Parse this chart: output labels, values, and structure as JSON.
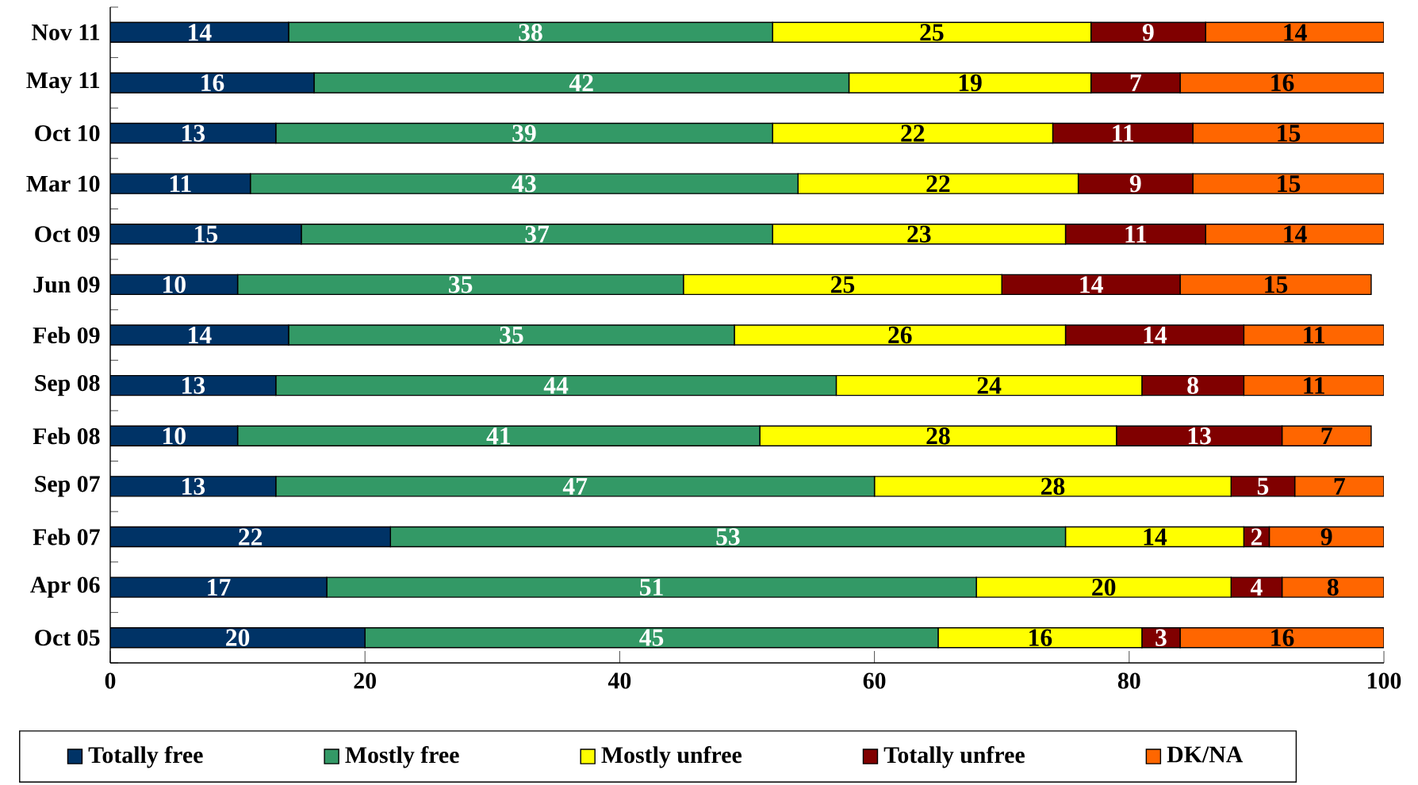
{
  "chart_data": {
    "type": "bar",
    "orientation": "horizontal",
    "stacked": true,
    "data_labels": true,
    "legend": "bottom",
    "grid": false,
    "categories": [
      "Nov 11",
      "May 11",
      "Oct 10",
      "Mar 10",
      "Oct 09",
      "Jun 09",
      "Feb 09",
      "Sep 08",
      "Feb 08",
      "Sep 07",
      "Feb 07",
      "Apr 06",
      "Oct 05"
    ],
    "xlim": [
      0,
      100
    ],
    "xticks": [
      0,
      20,
      40,
      60,
      80,
      100
    ],
    "series": [
      {
        "name": "Totally free",
        "color": "#003366",
        "values": [
          14,
          16,
          13,
          11,
          15,
          10,
          14,
          13,
          10,
          13,
          22,
          17,
          20
        ]
      },
      {
        "name": "Mostly free",
        "color": "#339966",
        "values": [
          38,
          42,
          39,
          43,
          37,
          35,
          35,
          44,
          41,
          47,
          53,
          51,
          45
        ]
      },
      {
        "name": "Mostly unfree",
        "color": "#ffff00",
        "values": [
          25,
          19,
          22,
          22,
          23,
          25,
          26,
          24,
          28,
          28,
          14,
          20,
          16
        ]
      },
      {
        "name": "Totally unfree",
        "color": "#800000",
        "values": [
          9,
          7,
          11,
          9,
          11,
          14,
          14,
          8,
          13,
          5,
          2,
          4,
          3
        ]
      },
      {
        "name": "DK/NA",
        "color": "#ff6600",
        "values": [
          14,
          16,
          15,
          15,
          14,
          15,
          11,
          11,
          7,
          7,
          9,
          8,
          16
        ]
      }
    ]
  }
}
